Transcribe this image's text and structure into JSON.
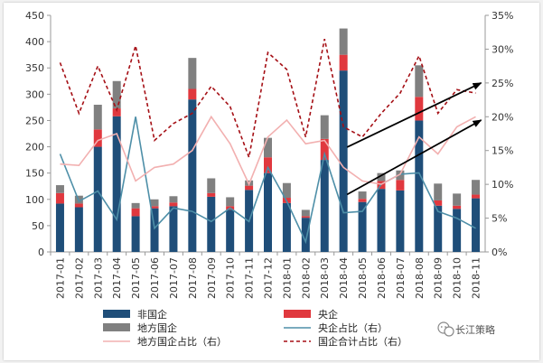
{
  "chart_data": {
    "type": "bar",
    "stacked": true,
    "categories": [
      "2017-01",
      "2017-02",
      "2017-03",
      "2017-04",
      "2017-05",
      "2017-06",
      "2017-07",
      "2017-08",
      "2017-09",
      "2017-10",
      "2017-11",
      "2017-12",
      "2018-01",
      "2018-02",
      "2018-03",
      "2018-04",
      "2018-05",
      "2018-06",
      "2018-07",
      "2018-08",
      "2018-09",
      "2018-10",
      "2018-11"
    ],
    "bar_series": [
      {
        "name": "非国企",
        "color": "#1f4e79",
        "values": [
          92,
          85,
          200,
          258,
          68,
          83,
          87,
          290,
          105,
          80,
          118,
          150,
          93,
          65,
          175,
          345,
          95,
          120,
          117,
          250,
          88,
          82,
          102
        ]
      },
      {
        "name": "央企",
        "color": "#e0383e",
        "values": [
          20,
          7,
          33,
          15,
          15,
          4,
          7,
          20,
          7,
          7,
          8,
          30,
          10,
          3,
          40,
          30,
          6,
          15,
          20,
          45,
          10,
          6,
          7
        ]
      },
      {
        "name": "地方国企",
        "color": "#808080",
        "values": [
          15,
          15,
          47,
          52,
          10,
          13,
          12,
          59,
          28,
          17,
          10,
          37,
          28,
          12,
          45,
          50,
          14,
          15,
          18,
          60,
          32,
          23,
          28
        ]
      }
    ],
    "line_series": [
      {
        "name": "央企占比（右）",
        "color": "#4e8fa8",
        "style": "solid",
        "axis": "right",
        "values": [
          14.5,
          7.5,
          9.0,
          4.8,
          20.0,
          3.5,
          6.5,
          6.0,
          4.5,
          6.5,
          4.5,
          12.5,
          7.5,
          1.5,
          14.5,
          5.8,
          6.0,
          10.0,
          11.5,
          11.7,
          6.0,
          5.0,
          3.5
        ]
      },
      {
        "name": "地方国企占比（右）",
        "color": "#f2b0b0",
        "style": "solid",
        "axis": "right",
        "values": [
          13.0,
          12.8,
          16.5,
          17.5,
          10.5,
          12.5,
          13.0,
          15.0,
          20.0,
          16.0,
          10.0,
          17.0,
          19.5,
          16.0,
          16.5,
          12.5,
          10.5,
          10.0,
          11.5,
          17.0,
          14.5,
          18.5,
          20.0
        ]
      },
      {
        "name": "国企合计占比（右）",
        "color": "#a50f15",
        "style": "dashed",
        "axis": "right",
        "values": [
          28.0,
          20.5,
          27.5,
          21.0,
          30.5,
          16.5,
          19.0,
          20.5,
          24.5,
          21.5,
          14.0,
          29.5,
          27.0,
          17.0,
          31.5,
          18.5,
          17.0,
          20.5,
          23.5,
          29.0,
          20.5,
          24.0,
          23.5
        ]
      }
    ],
    "left_axis": {
      "ylim": [
        0,
        450
      ],
      "ticks": [
        "0",
        "50",
        "100",
        "150",
        "200",
        "250",
        "300",
        "350",
        "400",
        "450"
      ]
    },
    "right_axis": {
      "ylim": [
        0,
        35
      ],
      "ticks": [
        "0%",
        "5%",
        "10%",
        "15%",
        "20%",
        "25%",
        "30%",
        "35%"
      ]
    },
    "legend_position": "bottom",
    "annotations": [
      {
        "type": "arrow",
        "from": {
          "x": "2018-04",
          "y": 15.5
        },
        "to": {
          "x": "2018-11",
          "y": 25.0
        },
        "axis": "right"
      },
      {
        "type": "arrow",
        "from": {
          "x": "2018-04",
          "y": 8.5
        },
        "to": {
          "x": "2018-11",
          "y": 19.5
        },
        "axis": "right"
      }
    ]
  },
  "legend": {
    "items": [
      {
        "label": "非国企",
        "kind": "bar",
        "color": "#1f4e79"
      },
      {
        "label": "央企",
        "kind": "bar",
        "color": "#e0383e"
      },
      {
        "label": "地方国企",
        "kind": "bar",
        "color": "#808080"
      },
      {
        "label": "央企占比（右）",
        "kind": "line",
        "color": "#4e8fa8"
      },
      {
        "label": "地方国企占比（右）",
        "kind": "line",
        "color": "#f2b0b0"
      },
      {
        "label": "国企合计占比（右）",
        "kind": "dashed",
        "color": "#a50f15"
      }
    ]
  },
  "watermark": {
    "text": "长江策略",
    "icon": "wechat-icon"
  }
}
